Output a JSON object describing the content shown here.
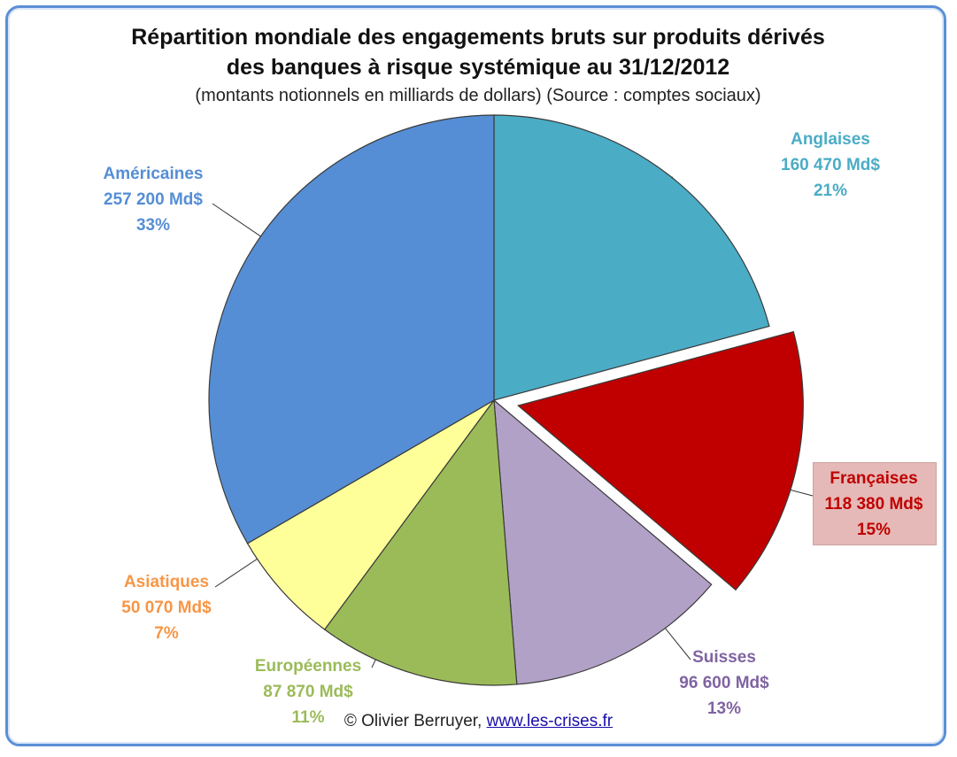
{
  "chart_data": {
    "type": "pie",
    "title_line1": "Répartition mondiale des engagements bruts sur produits dérivés",
    "title_line2": "des banques à risque systémique au 31/12/2012",
    "subtitle": "(montants notionnels en milliards  de dollars) (Source : comptes sociaux)",
    "unit": "Md$",
    "slices": [
      {
        "name": "Anglaises",
        "value": 160470,
        "value_label": "160 470 Md$",
        "percent_label": "21%",
        "color": "#4bacc6",
        "label_color": "#4bacc6",
        "exploded": false
      },
      {
        "name": "Françaises",
        "value": 118380,
        "value_label": "118 380 Md$",
        "percent_label": "15%",
        "color": "#c00000",
        "label_color": "#c00000",
        "exploded": true
      },
      {
        "name": "Suisses",
        "value": 96600,
        "value_label": "96 600 Md$",
        "percent_label": "13%",
        "color": "#b2a1c7",
        "label_color": "#8064a2",
        "exploded": false
      },
      {
        "name": "Européennes",
        "value": 87870,
        "value_label": "87 870 Md$",
        "percent_label": "11%",
        "color": "#9bbb59",
        "label_color": "#9bbb59",
        "exploded": false
      },
      {
        "name": "Asiatiques",
        "value": 50070,
        "value_label": "50 070 Md$",
        "percent_label": "7%",
        "color": "#ffff99",
        "label_color": "#f79646",
        "exploded": false
      },
      {
        "name": "Américaines",
        "value": 257200,
        "value_label": "257 200 Md$",
        "percent_label": "33%",
        "color": "#558ed5",
        "label_color": "#558ed5",
        "exploded": false
      }
    ],
    "legend": "none",
    "start": "top, clockwise"
  },
  "credit": {
    "text": "© Olivier Berruyer,",
    "link": "www.les-crises.fr"
  }
}
